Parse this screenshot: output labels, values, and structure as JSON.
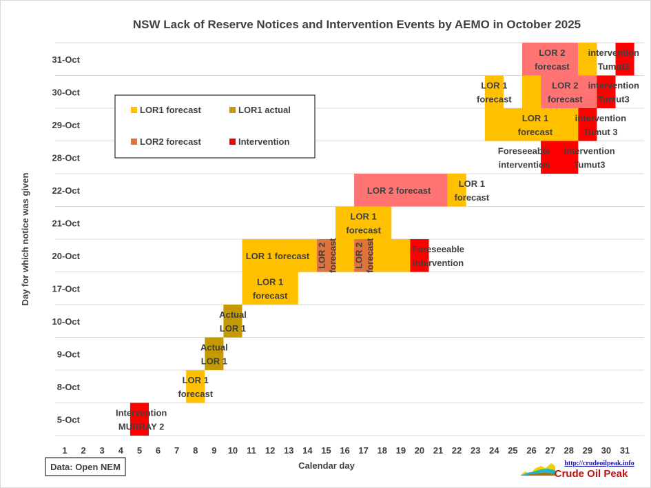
{
  "chart_data": {
    "type": "gantt",
    "title": "NSW Lack of Reserve Notices and Intervention Events by AEMO in October 2025",
    "xlabel": "Calendar day",
    "ylabel": "Day for which notice was given",
    "x_ticks": [
      "1",
      "2",
      "3",
      "4",
      "5",
      "6",
      "7",
      "8",
      "9",
      "10",
      "11",
      "12",
      "13",
      "14",
      "15",
      "16",
      "17",
      "18",
      "19",
      "20",
      "21",
      "22",
      "23",
      "24",
      "25",
      "26",
      "27",
      "28",
      "29",
      "30",
      "31"
    ],
    "rows": [
      "5-Oct",
      "8-Oct",
      "9-Oct",
      "10-Oct",
      "17-Oct",
      "20-Oct",
      "21-Oct",
      "22-Oct",
      "28-Oct",
      "29-Oct",
      "30-Oct",
      "31-Oct"
    ],
    "colors": {
      "lor1_forecast": "#FFC000",
      "lor1_actual": "#C49A00",
      "lor2_forecast": "#E0733C",
      "lor2_forecast_block": "#FF7373",
      "intervention": "#FF0000"
    },
    "legend": {
      "position": "upper-left",
      "items": [
        {
          "label": "LOR1 forecast",
          "key": "lor1_forecast"
        },
        {
          "label": "LOR1 actual",
          "key": "lor1_actual"
        },
        {
          "label": "LOR2 forecast",
          "key": "lor2_forecast"
        },
        {
          "label": "Intervention",
          "key": "intervention"
        }
      ]
    },
    "bars": [
      {
        "row": "5-Oct",
        "start_day": 5,
        "end_day": 5,
        "key": "intervention"
      },
      {
        "row": "8-Oct",
        "start_day": 8,
        "end_day": 8,
        "key": "lor1_forecast"
      },
      {
        "row": "9-Oct",
        "start_day": 9,
        "end_day": 9,
        "key": "lor1_actual"
      },
      {
        "row": "10-Oct",
        "start_day": 10,
        "end_day": 10,
        "key": "lor1_actual"
      },
      {
        "row": "17-Oct",
        "start_day": 11,
        "end_day": 13,
        "key": "lor1_forecast"
      },
      {
        "row": "20-Oct",
        "start_day": 11,
        "end_day": 14,
        "key": "lor1_forecast"
      },
      {
        "row": "20-Oct",
        "start_day": 15,
        "end_day": 15,
        "key": "lor2_forecast"
      },
      {
        "row": "20-Oct",
        "start_day": 16,
        "end_day": 16,
        "key": "lor1_forecast"
      },
      {
        "row": "20-Oct",
        "start_day": 17,
        "end_day": 17,
        "key": "lor2_forecast"
      },
      {
        "row": "20-Oct",
        "start_day": 18,
        "end_day": 19,
        "key": "lor1_forecast"
      },
      {
        "row": "20-Oct",
        "start_day": 20,
        "end_day": 20,
        "key": "intervention"
      },
      {
        "row": "21-Oct",
        "start_day": 16,
        "end_day": 18,
        "key": "lor1_forecast"
      },
      {
        "row": "22-Oct",
        "start_day": 17,
        "end_day": 21,
        "key": "lor2_forecast_block"
      },
      {
        "row": "22-Oct",
        "start_day": 22,
        "end_day": 22,
        "key": "lor1_forecast"
      },
      {
        "row": "28-Oct",
        "start_day": 27,
        "end_day": 28,
        "key": "intervention"
      },
      {
        "row": "29-Oct",
        "start_day": 24,
        "end_day": 28,
        "key": "lor1_forecast"
      },
      {
        "row": "29-Oct",
        "start_day": 29,
        "end_day": 29,
        "key": "intervention"
      },
      {
        "row": "30-Oct",
        "start_day": 24,
        "end_day": 24,
        "key": "lor1_forecast"
      },
      {
        "row": "30-Oct",
        "start_day": 26,
        "end_day": 26,
        "key": "lor1_forecast"
      },
      {
        "row": "30-Oct",
        "start_day": 27,
        "end_day": 29,
        "key": "lor2_forecast_block"
      },
      {
        "row": "30-Oct",
        "start_day": 30,
        "end_day": 30,
        "key": "intervention"
      },
      {
        "row": "31-Oct",
        "start_day": 26,
        "end_day": 28,
        "key": "lor2_forecast_block"
      },
      {
        "row": "31-Oct",
        "start_day": 29,
        "end_day": 29,
        "key": "lor1_forecast"
      },
      {
        "row": "31-Oct",
        "start_day": 31,
        "end_day": 31,
        "key": "intervention"
      }
    ],
    "annotations": [
      {
        "row": "5-Oct",
        "day": 5.1,
        "lines": [
          "Intervention",
          "MURRAY 2"
        ]
      },
      {
        "row": "8-Oct",
        "day": 8.0,
        "lines": [
          "LOR 1",
          "forecast"
        ]
      },
      {
        "row": "9-Oct",
        "day": 9.0,
        "lines": [
          "Actual",
          "LOR 1"
        ]
      },
      {
        "row": "10-Oct",
        "day": 10.0,
        "lines": [
          "Actual",
          "LOR 1"
        ]
      },
      {
        "row": "17-Oct",
        "day": 12.0,
        "lines": [
          "LOR 1",
          "forecast"
        ]
      },
      {
        "row": "20-Oct",
        "day": 12.4,
        "lines": [
          "LOR 1 forecast"
        ]
      },
      {
        "row": "20-Oct",
        "day": 15.0,
        "lines": [
          "LOR 2",
          "forecast"
        ],
        "vertical": true
      },
      {
        "row": "20-Oct",
        "day": 17.0,
        "lines": [
          "LOR 2",
          "forecast"
        ],
        "vertical": true
      },
      {
        "row": "20-Oct",
        "day": 21.0,
        "lines": [
          "Foreseeable",
          "intervention"
        ]
      },
      {
        "row": "21-Oct",
        "day": 17.0,
        "lines": [
          "LOR 1",
          "forecast"
        ]
      },
      {
        "row": "22-Oct",
        "day": 18.9,
        "lines": [
          "LOR 2 forecast"
        ]
      },
      {
        "row": "22-Oct",
        "day": 22.8,
        "lines": [
          "LOR 1",
          "forecast"
        ]
      },
      {
        "row": "28-Oct",
        "day": 25.6,
        "lines": [
          "Foreseeable",
          "intervention"
        ]
      },
      {
        "row": "28-Oct",
        "day": 29.1,
        "lines": [
          "intervention",
          "Tumut3"
        ]
      },
      {
        "row": "29-Oct",
        "day": 26.2,
        "lines": [
          "LOR 1",
          "forecast"
        ]
      },
      {
        "row": "29-Oct",
        "day": 29.7,
        "lines": [
          "intervention",
          "Tumut 3"
        ]
      },
      {
        "row": "30-Oct",
        "day": 24.0,
        "lines": [
          "LOR 1",
          "forecast"
        ]
      },
      {
        "row": "30-Oct",
        "day": 27.8,
        "lines": [
          "LOR 2",
          "forecast"
        ]
      },
      {
        "row": "30-Oct",
        "day": 30.4,
        "lines": [
          "intervention",
          "Tumut3"
        ]
      },
      {
        "row": "31-Oct",
        "day": 27.1,
        "lines": [
          "LOR 2",
          "forecast"
        ]
      },
      {
        "row": "31-Oct",
        "day": 30.4,
        "lines": [
          "intervention",
          "Tumut3"
        ]
      }
    ],
    "grid": "horizontal"
  },
  "source_note": "Data: Open NEM",
  "logo": {
    "url_text": "http://crudeoilpeak.info",
    "name": "Crude Oil Peak"
  }
}
